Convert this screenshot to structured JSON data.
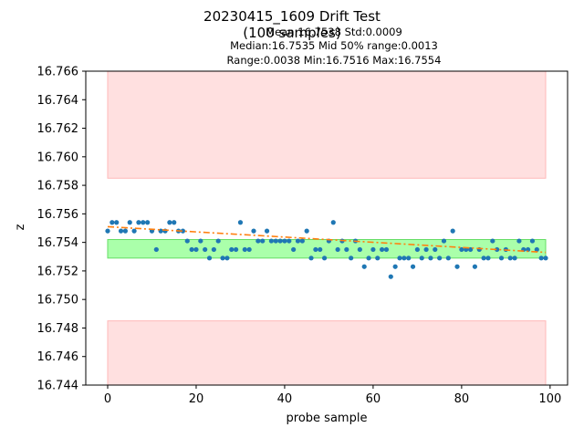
{
  "chart_data": {
    "type": "scatter",
    "title": "20230415_1609 Drift Test",
    "subtitle": "(100 samples)",
    "stats": {
      "line1": "Mean:16.7538  Std:0.0009",
      "line2": "Median:16.7535  Mid 50% range:0.0013",
      "line3": "Range:0.0038  Min:16.7516  Max:16.7554"
    },
    "xlabel": "probe sample",
    "ylabel": "z",
    "xlim": [
      -4.95,
      103.95
    ],
    "ylim": [
      16.744,
      16.766
    ],
    "xticks": [
      0,
      20,
      40,
      60,
      80,
      100
    ],
    "yticks": [
      16.744,
      16.746,
      16.748,
      16.75,
      16.752,
      16.754,
      16.756,
      16.758,
      16.76,
      16.762,
      16.764,
      16.766
    ],
    "grid": false,
    "bands": [
      {
        "name": "upper limit zone",
        "x": [
          0,
          99
        ],
        "y": [
          16.7585,
          16.766
        ],
        "color": "#ffe0e0",
        "edge": "#ffb8b8"
      },
      {
        "name": "lower limit zone",
        "x": [
          0,
          99
        ],
        "y": [
          16.744,
          16.7485
        ],
        "color": "#ffe0e0",
        "edge": "#ffb8b8"
      },
      {
        "name": "mid 50% range",
        "x": [
          0,
          99
        ],
        "y": [
          16.7529,
          16.7542
        ],
        "color": "#aaffaa",
        "edge": "#66dd66"
      }
    ],
    "trend": {
      "x0": 0,
      "y0": 16.7551,
      "x1": 99,
      "y1": 16.7533,
      "color": "#ff7f0e",
      "style": "dashdot"
    },
    "series": [
      {
        "color": "#1f77b4",
        "x": [
          0,
          1,
          2,
          3,
          4,
          5,
          6,
          7,
          8,
          9,
          10,
          11,
          12,
          13,
          14,
          15,
          16,
          17,
          18,
          19,
          20,
          21,
          22,
          23,
          24,
          25,
          26,
          27,
          28,
          29,
          30,
          31,
          32,
          33,
          34,
          35,
          36,
          37,
          38,
          39,
          40,
          41,
          42,
          43,
          44,
          45,
          46,
          47,
          48,
          49,
          50,
          51,
          52,
          53,
          54,
          55,
          56,
          57,
          58,
          59,
          60,
          61,
          62,
          63,
          64,
          65,
          66,
          67,
          68,
          69,
          70,
          71,
          72,
          73,
          74,
          75,
          76,
          77,
          78,
          79,
          80,
          81,
          82,
          83,
          84,
          85,
          86,
          87,
          88,
          89,
          90,
          91,
          92,
          93,
          94,
          95,
          96,
          97,
          98,
          99
        ],
        "y": [
          16.7548,
          16.7554,
          16.7554,
          16.7548,
          16.7548,
          16.7554,
          16.7548,
          16.7554,
          16.7554,
          16.7554,
          16.7548,
          16.7535,
          16.7548,
          16.7548,
          16.7554,
          16.7554,
          16.7548,
          16.7548,
          16.7541,
          16.7535,
          16.7535,
          16.7541,
          16.7535,
          16.7529,
          16.7535,
          16.7541,
          16.7529,
          16.7529,
          16.7535,
          16.7535,
          16.7554,
          16.7535,
          16.7535,
          16.7548,
          16.7541,
          16.7541,
          16.7548,
          16.7541,
          16.7541,
          16.7541,
          16.7541,
          16.7541,
          16.7535,
          16.7541,
          16.7541,
          16.7548,
          16.7529,
          16.7535,
          16.7535,
          16.7529,
          16.7541,
          16.7554,
          16.7535,
          16.7541,
          16.7535,
          16.7529,
          16.7541,
          16.7535,
          16.7523,
          16.7529,
          16.7535,
          16.7529,
          16.7535,
          16.7535,
          16.7516,
          16.7523,
          16.7529,
          16.7529,
          16.7529,
          16.7523,
          16.7535,
          16.7529,
          16.7535,
          16.7529,
          16.7535,
          16.7529,
          16.7541,
          16.7529,
          16.7548,
          16.7523,
          16.7535,
          16.7535,
          16.7535,
          16.7523,
          16.7535,
          16.7529,
          16.7529,
          16.7541,
          16.7535,
          16.7529,
          16.7535,
          16.7529,
          16.7529,
          16.7541,
          16.7535,
          16.7535,
          16.7541,
          16.7535,
          16.7529,
          16.7529
        ]
      }
    ]
  }
}
